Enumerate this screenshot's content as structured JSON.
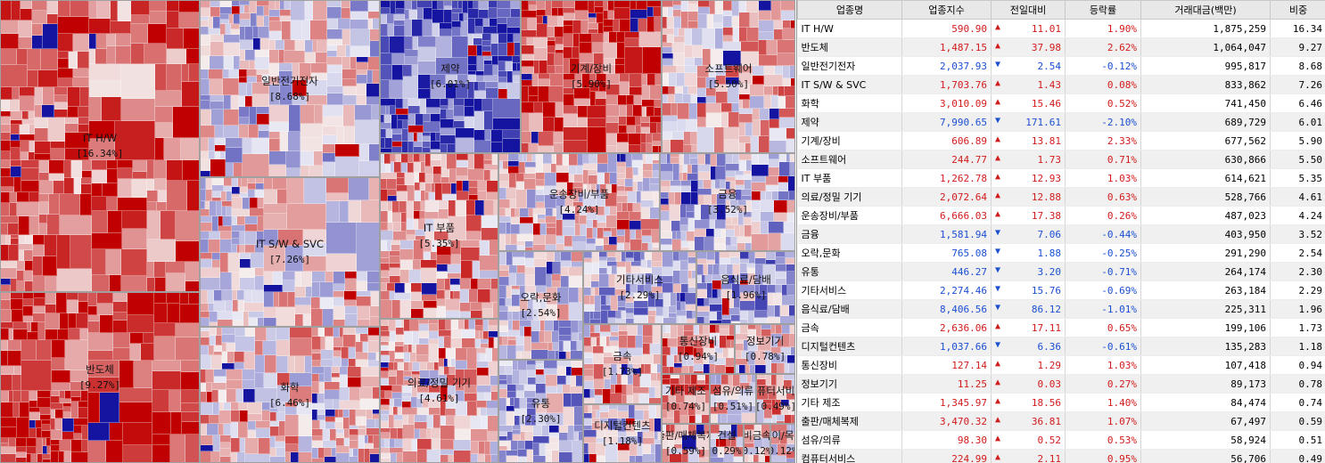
{
  "table": {
    "headers": [
      "업종명",
      "업종지수",
      "전일대비",
      "등락률",
      "거래대금(백만)",
      "비중"
    ],
    "rows": [
      {
        "name": "IT H/W",
        "index": "590.90",
        "dir": "up",
        "change": "11.01",
        "rate": "1.90%",
        "amount": "1,875,259",
        "weight": "16.34"
      },
      {
        "name": "반도체",
        "index": "1,487.15",
        "dir": "up",
        "change": "37.98",
        "rate": "2.62%",
        "amount": "1,064,047",
        "weight": "9.27"
      },
      {
        "name": "일반전기전자",
        "index": "2,037.93",
        "dir": "down",
        "change": "2.54",
        "rate": "-0.12%",
        "amount": "995,817",
        "weight": "8.68"
      },
      {
        "name": "IT S/W & SVC",
        "index": "1,703.76",
        "dir": "up",
        "change": "1.43",
        "rate": "0.08%",
        "amount": "833,862",
        "weight": "7.26"
      },
      {
        "name": "화학",
        "index": "3,010.09",
        "dir": "up",
        "change": "15.46",
        "rate": "0.52%",
        "amount": "741,450",
        "weight": "6.46"
      },
      {
        "name": "제약",
        "index": "7,990.65",
        "dir": "down",
        "change": "171.61",
        "rate": "-2.10%",
        "amount": "689,729",
        "weight": "6.01"
      },
      {
        "name": "기계/장비",
        "index": "606.89",
        "dir": "up",
        "change": "13.81",
        "rate": "2.33%",
        "amount": "677,562",
        "weight": "5.90"
      },
      {
        "name": "소프트웨어",
        "index": "244.77",
        "dir": "up",
        "change": "1.73",
        "rate": "0.71%",
        "amount": "630,866",
        "weight": "5.50"
      },
      {
        "name": "IT 부품",
        "index": "1,262.78",
        "dir": "up",
        "change": "12.93",
        "rate": "1.03%",
        "amount": "614,621",
        "weight": "5.35"
      },
      {
        "name": "의료/정밀 기기",
        "index": "2,072.64",
        "dir": "up",
        "change": "12.88",
        "rate": "0.63%",
        "amount": "528,766",
        "weight": "4.61"
      },
      {
        "name": "운송장비/부품",
        "index": "6,666.03",
        "dir": "up",
        "change": "17.38",
        "rate": "0.26%",
        "amount": "487,023",
        "weight": "4.24"
      },
      {
        "name": "금융",
        "index": "1,581.94",
        "dir": "down",
        "change": "7.06",
        "rate": "-0.44%",
        "amount": "403,950",
        "weight": "3.52"
      },
      {
        "name": "오락,문화",
        "index": "765.08",
        "dir": "down",
        "change": "1.88",
        "rate": "-0.25%",
        "amount": "291,290",
        "weight": "2.54"
      },
      {
        "name": "유통",
        "index": "446.27",
        "dir": "down",
        "change": "3.20",
        "rate": "-0.71%",
        "amount": "264,174",
        "weight": "2.30"
      },
      {
        "name": "기타서비스",
        "index": "2,274.46",
        "dir": "down",
        "change": "15.76",
        "rate": "-0.69%",
        "amount": "263,184",
        "weight": "2.29"
      },
      {
        "name": "음식료/담배",
        "index": "8,406.56",
        "dir": "down",
        "change": "86.12",
        "rate": "-1.01%",
        "amount": "225,311",
        "weight": "1.96"
      },
      {
        "name": "금속",
        "index": "2,636.06",
        "dir": "up",
        "change": "17.11",
        "rate": "0.65%",
        "amount": "199,106",
        "weight": "1.73"
      },
      {
        "name": "디지털컨텐츠",
        "index": "1,037.66",
        "dir": "down",
        "change": "6.36",
        "rate": "-0.61%",
        "amount": "135,283",
        "weight": "1.18"
      },
      {
        "name": "통신장비",
        "index": "127.14",
        "dir": "up",
        "change": "1.29",
        "rate": "1.03%",
        "amount": "107,418",
        "weight": "0.94"
      },
      {
        "name": "정보기기",
        "index": "11.25",
        "dir": "up",
        "change": "0.03",
        "rate": "0.27%",
        "amount": "89,173",
        "weight": "0.78"
      },
      {
        "name": "기타 제조",
        "index": "1,345.97",
        "dir": "up",
        "change": "18.56",
        "rate": "1.40%",
        "amount": "84,474",
        "weight": "0.74"
      },
      {
        "name": "출판/매체복제",
        "index": "3,470.32",
        "dir": "up",
        "change": "36.81",
        "rate": "1.07%",
        "amount": "67,497",
        "weight": "0.59"
      },
      {
        "name": "섬유/의류",
        "index": "98.30",
        "dir": "up",
        "change": "0.52",
        "rate": "0.53%",
        "amount": "58,924",
        "weight": "0.51"
      },
      {
        "name": "컴퓨터서비스",
        "index": "224.99",
        "dir": "up",
        "change": "2.11",
        "rate": "0.95%",
        "amount": "56,706",
        "weight": "0.49"
      }
    ]
  },
  "treemap": {
    "sectors": [
      {
        "label": "IT H/W",
        "pct": "[16.34%]",
        "rate": 1.9
      },
      {
        "label": "반도체",
        "pct": "[9.27%]",
        "rate": 2.62
      },
      {
        "label": "일반전기전자",
        "pct": "[8.68%]",
        "rate": -0.12
      },
      {
        "label": "IT S/W & SVC",
        "pct": "[7.26%]",
        "rate": 0.08
      },
      {
        "label": "화학",
        "pct": "[6.46%]",
        "rate": 0.52
      },
      {
        "label": "제약",
        "pct": "[6.01%]",
        "rate": -2.1
      },
      {
        "label": "기계/장비",
        "pct": "[5.90%]",
        "rate": 2.33
      },
      {
        "label": "소프트웨어",
        "pct": "[5.50%]",
        "rate": 0.71
      },
      {
        "label": "IT 부품",
        "pct": "[5.35%]",
        "rate": 1.03
      },
      {
        "label": "의료/정밀 기기",
        "pct": "[4.61%]",
        "rate": 0.63
      },
      {
        "label": "운송장비/부품",
        "pct": "[4.24%]",
        "rate": 0.26
      },
      {
        "label": "금융",
        "pct": "[3.52%]",
        "rate": -0.44
      },
      {
        "label": "오락,문화",
        "pct": "[2.54%]",
        "rate": -0.25
      },
      {
        "label": "유통",
        "pct": "[2.30%]",
        "rate": -0.71
      },
      {
        "label": "기타서비스",
        "pct": "[2.29%]",
        "rate": -0.69
      },
      {
        "label": "음식료/담배",
        "pct": "[1.96%]",
        "rate": -1.01
      },
      {
        "label": "금속",
        "pct": "[1.73%]",
        "rate": 0.65
      },
      {
        "label": "디지털컨텐츠",
        "pct": "[1.18%]",
        "rate": -0.61
      },
      {
        "label": "통신장비",
        "pct": "[0.94%]",
        "rate": 1.03
      },
      {
        "label": "정보기기",
        "pct": "[0.78%]",
        "rate": 0.27
      },
      {
        "label": "기타 제조",
        "pct": "[0.74%]",
        "rate": 1.4
      },
      {
        "label": "출판/매체복제",
        "pct": "[0.59%]",
        "rate": 1.07
      },
      {
        "label": "섬유/의류",
        "pct": "[0.51%]",
        "rate": 0.53
      },
      {
        "label": "컴퓨터서비스",
        "pct": "[0.49%]",
        "rate": 0.95
      },
      {
        "label": "건설",
        "pct": "[0.29%]",
        "rate": 0.3
      },
      {
        "label": "비금속",
        "pct": "[0.12%]",
        "rate": 0.4
      },
      {
        "label": "종이/목재",
        "pct": "[0.12%]",
        "rate": 0.5
      }
    ]
  },
  "colors": {
    "up": "#d21b1b",
    "down": "#1b4fd2",
    "strong_up": "#c00000",
    "strong_down": "#1414a0"
  }
}
